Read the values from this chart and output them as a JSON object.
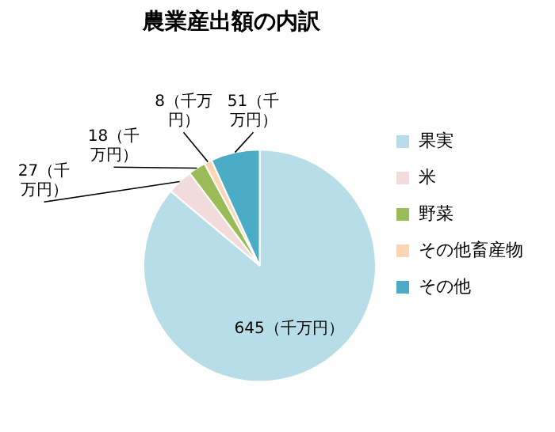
{
  "chart_data": {
    "type": "pie",
    "title": "農業産出額の内訳",
    "categories": [
      "果実",
      "米",
      "野菜",
      "その他畜産物",
      "その他"
    ],
    "values": [
      645,
      27,
      18,
      8,
      51
    ],
    "colors": [
      "#b7dde8",
      "#f2dcdb",
      "#9bbb59",
      "#fcd5b5",
      "#4bacc6"
    ],
    "value_labels": [
      "645（千万円）",
      "27（千万円）",
      "18（千万円）",
      "8（千万円）",
      "51（千万円）"
    ],
    "legend": "right"
  }
}
